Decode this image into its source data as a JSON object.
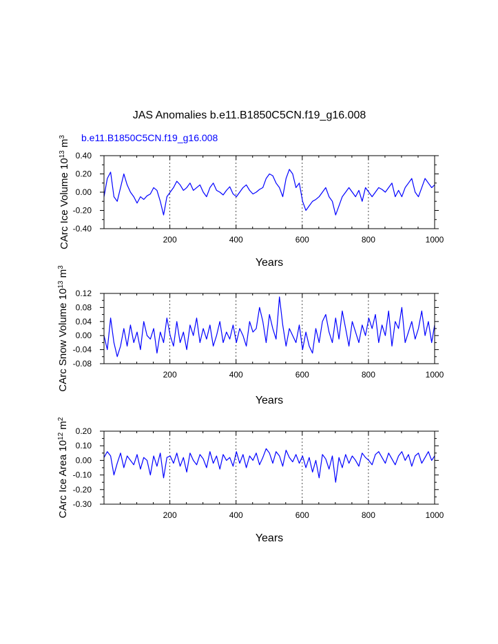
{
  "title": "JAS Anomalies b.e11.B1850C5CN.f19_g16.008",
  "case_label": "b.e11.B1850C5CN.f19_g16.008",
  "colors": {
    "series": "#0000ff",
    "axis": "#000000",
    "grid": "#000000"
  },
  "chart_data": [
    {
      "type": "line",
      "ylabel": "CArc Ice Volume 10^13 m^3",
      "xlabel": "Years",
      "xlim": [
        1,
        1000
      ],
      "ylim": [
        -0.4,
        0.4
      ],
      "xticks": [
        200,
        400,
        600,
        800,
        1000
      ],
      "yticks": [
        0.4,
        0.2,
        0.0,
        -0.2,
        -0.4
      ],
      "ytick_labels": [
        "0.40",
        "0.20",
        "0.00",
        "-0.20",
        "-0.40"
      ],
      "grid_x": [
        200,
        400,
        600,
        800
      ],
      "series": [
        {
          "name": "Ice Volume",
          "x_step": 10,
          "values": [
            -0.05,
            0.15,
            0.22,
            -0.05,
            -0.1,
            0.05,
            0.2,
            0.08,
            0.0,
            -0.05,
            -0.12,
            -0.05,
            -0.08,
            -0.04,
            -0.02,
            0.05,
            0.02,
            -0.1,
            -0.25,
            -0.05,
            0.0,
            0.05,
            0.12,
            0.08,
            0.02,
            0.05,
            0.1,
            0.02,
            0.05,
            0.08,
            0.0,
            -0.05,
            0.05,
            0.1,
            0.02,
            0.0,
            -0.03,
            0.02,
            0.06,
            -0.02,
            -0.05,
            0.0,
            0.05,
            0.08,
            0.02,
            -0.02,
            0.0,
            0.03,
            0.05,
            0.15,
            0.2,
            0.18,
            0.1,
            0.05,
            -0.05,
            0.15,
            0.25,
            0.2,
            0.05,
            0.1,
            -0.1,
            -0.2,
            -0.15,
            -0.1,
            -0.08,
            -0.05,
            0.0,
            0.05,
            -0.05,
            -0.1,
            -0.25,
            -0.15,
            -0.05,
            0.0,
            0.05,
            0.0,
            -0.05,
            0.02,
            -0.1,
            0.05,
            0.0,
            -0.05,
            0.0,
            0.05,
            0.03,
            0.0,
            0.05,
            0.1,
            -0.05,
            0.02,
            -0.05,
            0.05,
            0.1,
            0.15,
            0.0,
            -0.05,
            0.05,
            0.15,
            0.1,
            0.05,
            0.08
          ]
        }
      ]
    },
    {
      "type": "line",
      "ylabel": "CArc Snow Volume 10^13 m^3",
      "xlabel": "Years",
      "xlim": [
        1,
        1000
      ],
      "ylim": [
        -0.08,
        0.12
      ],
      "xticks": [
        200,
        400,
        600,
        800,
        1000
      ],
      "yticks": [
        0.12,
        0.08,
        0.04,
        0.0,
        -0.04,
        -0.08
      ],
      "ytick_labels": [
        "0.12",
        "0.08",
        "0.04",
        "0.00",
        "-0.04",
        "-0.08"
      ],
      "grid_x": [
        200,
        400,
        600,
        800
      ],
      "series": [
        {
          "name": "Snow Volume",
          "x_step": 10,
          "values": [
            0.0,
            -0.04,
            0.05,
            -0.02,
            -0.06,
            -0.03,
            0.02,
            -0.03,
            0.03,
            -0.02,
            0.01,
            -0.04,
            0.04,
            0.0,
            -0.01,
            0.02,
            -0.05,
            0.01,
            -0.02,
            0.05,
            0.0,
            -0.03,
            0.04,
            -0.02,
            0.01,
            -0.04,
            0.03,
            0.0,
            0.05,
            -0.02,
            0.02,
            -0.01,
            0.03,
            -0.03,
            0.0,
            0.04,
            -0.02,
            0.01,
            -0.01,
            0.03,
            -0.02,
            0.02,
            0.0,
            -0.03,
            0.04,
            0.01,
            0.02,
            0.08,
            0.04,
            -0.02,
            0.06,
            0.02,
            -0.01,
            0.11,
            0.03,
            -0.03,
            0.02,
            0.0,
            -0.02,
            0.03,
            -0.04,
            0.01,
            -0.03,
            -0.05,
            0.02,
            -0.02,
            0.04,
            0.06,
            0.01,
            -0.02,
            0.05,
            -0.01,
            0.07,
            0.02,
            -0.03,
            0.04,
            0.01,
            -0.02,
            0.03,
            0.0,
            0.05,
            0.02,
            0.06,
            -0.02,
            0.03,
            0.0,
            0.07,
            -0.03,
            0.04,
            0.02,
            0.08,
            -0.02,
            0.01,
            0.04,
            -0.01,
            0.02,
            0.07,
            0.0,
            0.04,
            -0.02,
            0.03
          ]
        }
      ]
    },
    {
      "type": "line",
      "ylabel": "CArc Ice Area 10^12 m^2",
      "xlabel": "Years",
      "xlim": [
        1,
        1000
      ],
      "ylim": [
        -0.3,
        0.2
      ],
      "xticks": [
        200,
        400,
        600,
        800,
        1000
      ],
      "yticks": [
        0.2,
        0.1,
        0.0,
        -0.1,
        -0.2,
        -0.3
      ],
      "ytick_labels": [
        "0.20",
        "0.10",
        "0.00",
        "-0.10",
        "-0.20",
        "-0.30"
      ],
      "grid_x": [
        200,
        400,
        600,
        800
      ],
      "series": [
        {
          "name": "Ice Area",
          "x_step": 10,
          "values": [
            0.02,
            0.06,
            0.03,
            -0.1,
            -0.02,
            0.05,
            -0.05,
            0.03,
            0.0,
            -0.03,
            0.04,
            -0.06,
            0.02,
            0.0,
            -0.1,
            0.03,
            -0.04,
            0.05,
            -0.12,
            0.02,
            0.03,
            -0.02,
            0.05,
            -0.04,
            0.02,
            -0.08,
            0.05,
            0.0,
            -0.03,
            0.04,
            0.01,
            -0.05,
            0.06,
            -0.02,
            0.03,
            -0.06,
            0.04,
            0.0,
            0.02,
            -0.04,
            0.06,
            -0.02,
            0.04,
            -0.05,
            0.03,
            0.0,
            0.05,
            -0.03,
            0.02,
            0.08,
            0.05,
            -0.02,
            0.06,
            0.03,
            -0.04,
            0.07,
            0.02,
            -0.01,
            0.04,
            -0.02,
            0.03,
            -0.05,
            0.02,
            -0.08,
            0.0,
            -0.12,
            0.04,
            0.01,
            -0.06,
            0.03,
            -0.15,
            0.02,
            -0.05,
            0.04,
            -0.02,
            0.03,
            0.0,
            -0.04,
            0.05,
            0.02,
            0.0,
            -0.03,
            0.04,
            0.06,
            0.02,
            -0.02,
            0.05,
            0.01,
            -0.03,
            0.03,
            0.06,
            0.0,
            0.04,
            -0.04,
            0.03,
            0.05,
            -0.02,
            0.02,
            0.06,
            0.0,
            0.03
          ]
        }
      ]
    }
  ]
}
